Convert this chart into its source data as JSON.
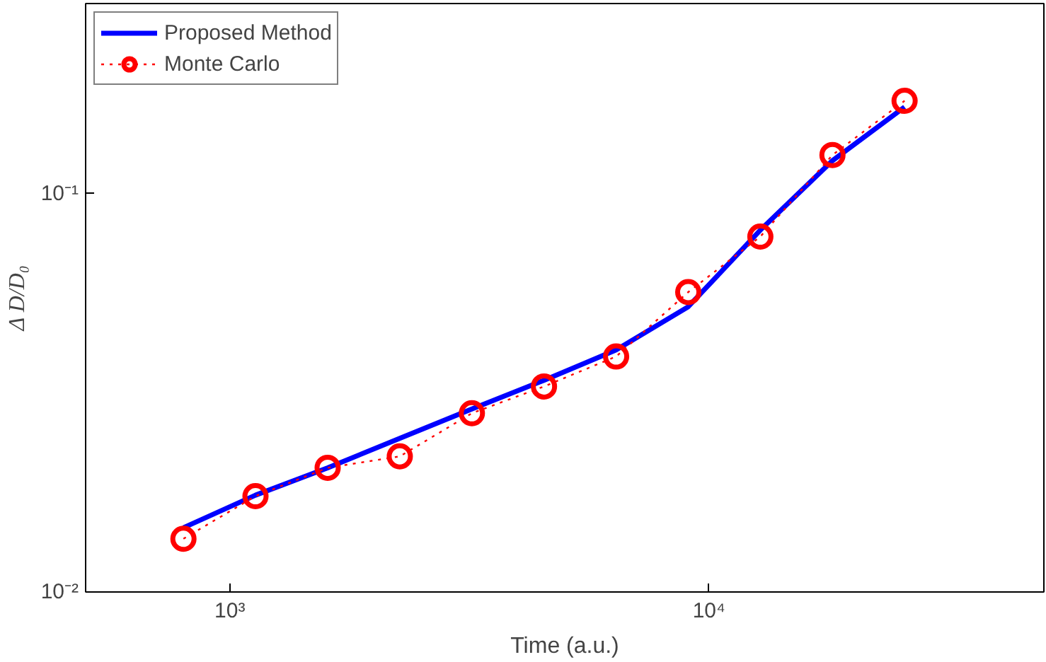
{
  "chart_data": {
    "type": "line",
    "xlabel": "Time (a.u.)",
    "ylabel": "Δ D/D₀",
    "log": "xy",
    "grid": false,
    "legend": "top left",
    "xlim": [
      500,
      50000
    ],
    "ylim": [
      0.01,
      0.3
    ],
    "xticks": [
      {
        "value": 1000,
        "label": "10³"
      },
      {
        "value": 10000,
        "label": "10⁴"
      }
    ],
    "yticks": [
      {
        "value": 0.01,
        "label": "10⁻²"
      },
      {
        "value": 0.1,
        "label": "10⁻¹"
      }
    ],
    "x": [
      800,
      1131,
      1600,
      2263,
      3200,
      4525,
      6400,
      9051,
      12800,
      18102,
      25600
    ],
    "series": [
      {
        "name": "Proposed Method",
        "color": "#0000ff",
        "marker": "none",
        "line_style": "solid",
        "values": [
          0.0145,
          0.0175,
          0.0205,
          0.0243,
          0.0288,
          0.034,
          0.0405,
          0.052,
          0.081,
          0.121,
          0.165
        ]
      },
      {
        "name": "Monte Carlo",
        "color": "#ff0000",
        "marker": "circle",
        "line_style": "dotted",
        "values": [
          0.0136,
          0.0174,
          0.0205,
          0.0219,
          0.0281,
          0.0328,
          0.039,
          0.0566,
          0.078,
          0.125,
          0.171
        ]
      }
    ]
  }
}
